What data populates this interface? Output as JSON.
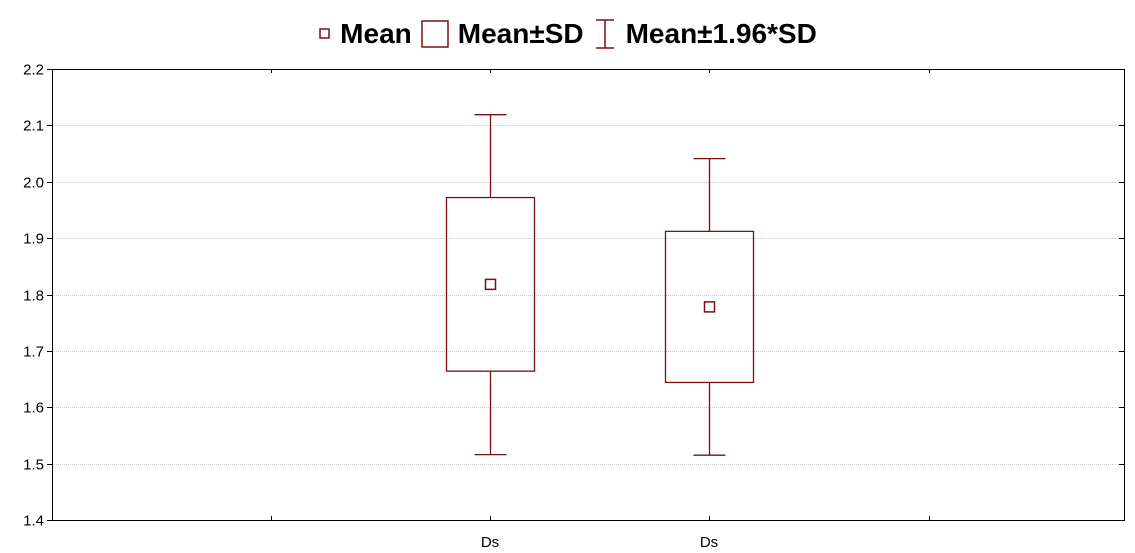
{
  "legend": {
    "mean_label": "Mean",
    "sd_label": "Mean±SD",
    "ci_label": "Mean±1.96*SD"
  },
  "colors": {
    "series": "#7a1010",
    "grid": "#b8b8b8",
    "axis": "#000000"
  },
  "chart_data": {
    "type": "box",
    "ylim": [
      1.4,
      2.2
    ],
    "yticks": [
      "1.4",
      "1.5",
      "1.6",
      "1.7",
      "1.8",
      "1.9",
      "2.0",
      "2.1",
      "2.2"
    ],
    "categories": [
      "Ds",
      "Ds"
    ],
    "xlabel": "",
    "ylabel": "",
    "grid": true,
    "legend_position": "top",
    "boxes": [
      {
        "label": "Ds",
        "mean": 1.818,
        "sd_low": 1.664,
        "sd_high": 1.972,
        "whisker_low": 1.516,
        "whisker_high": 2.119
      },
      {
        "label": "Ds",
        "mean": 1.778,
        "sd_low": 1.644,
        "sd_high": 1.912,
        "whisker_low": 1.515,
        "whisker_high": 2.041
      }
    ]
  }
}
